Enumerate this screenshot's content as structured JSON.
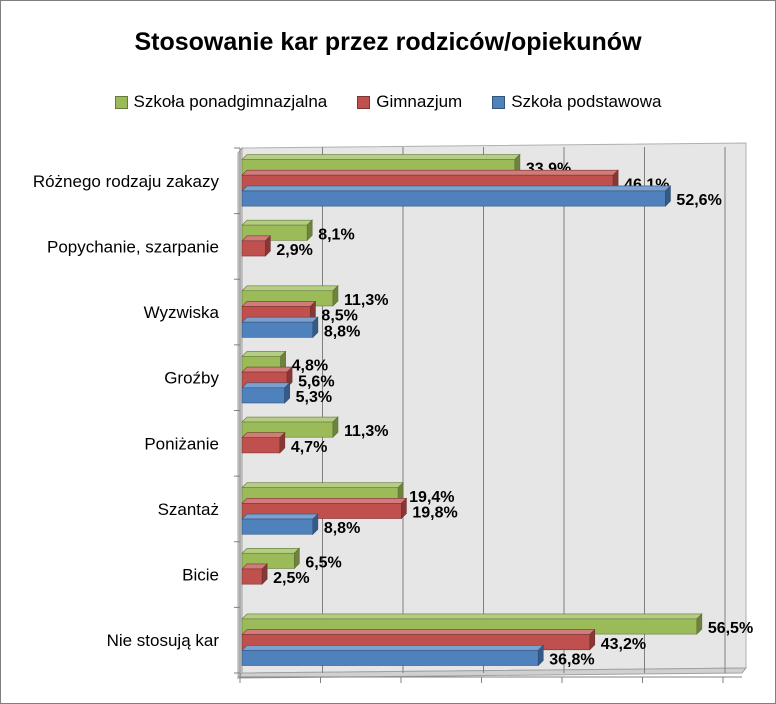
{
  "chart_data": {
    "type": "bar",
    "orientation": "horizontal",
    "title": "Stosowanie kar przez rodziców/opiekunów",
    "categories": [
      "Różnego rodzaju zakazy",
      "Popychanie, szarpanie",
      "Wyzwiska",
      "Groźby",
      "Poniżanie",
      "Szantaż",
      "Bicie",
      "Nie stosują kar"
    ],
    "series": [
      {
        "name": "Szkoła ponadgimnazjalna",
        "color": "#9bbb59",
        "values": [
          33.9,
          8.1,
          11.3,
          4.8,
          11.3,
          19.4,
          6.5,
          56.5
        ],
        "labels": [
          "33,9%",
          "8,1%",
          "11,3%",
          "4,8%",
          "11,3%",
          "19,4%",
          "6,5%",
          "56,5%"
        ]
      },
      {
        "name": "Gimnazjum",
        "color": "#c0504d",
        "values": [
          46.1,
          2.9,
          8.5,
          5.6,
          4.7,
          19.8,
          2.5,
          43.2
        ],
        "labels": [
          "46,1%",
          "2,9%",
          "8,5%",
          "5,6%",
          "4,7%",
          "19,8%",
          "2,5%",
          "43,2%"
        ]
      },
      {
        "name": "Szkoła podstawowa",
        "color": "#4f81bd",
        "values": [
          52.6,
          null,
          8.8,
          5.3,
          null,
          8.8,
          null,
          36.8
        ],
        "labels": [
          "52,6%",
          null,
          "8,8%",
          "5,3%",
          null,
          "8,8%",
          null,
          "36,8%"
        ]
      }
    ],
    "legend_order": [
      0,
      1,
      2
    ],
    "legend_position": "top",
    "xlim": [
      0,
      60
    ],
    "grid": true,
    "value_labels": true
  }
}
